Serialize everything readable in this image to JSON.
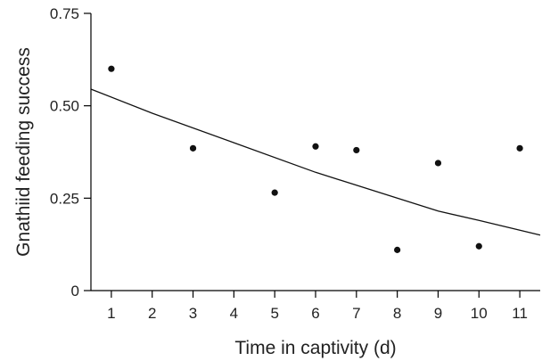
{
  "chart_data": {
    "type": "scatter",
    "xlabel": "Time in captivity (d)",
    "ylabel": "Gnathiid feeding success",
    "xlim": [
      0.5,
      11.5
    ],
    "ylim": [
      0,
      0.75
    ],
    "x_ticks": [
      1,
      2,
      3,
      4,
      5,
      6,
      7,
      8,
      9,
      10,
      11
    ],
    "x_tick_labels": [
      "1",
      "2",
      "3",
      "4",
      "5",
      "6",
      "7",
      "8",
      "9",
      "10",
      "11"
    ],
    "y_ticks": [
      0,
      0.25,
      0.5,
      0.75
    ],
    "y_tick_labels": [
      "0",
      "0.25",
      "0.50",
      "0.75"
    ],
    "grid": false,
    "series": [
      {
        "type": "scatter",
        "points": [
          {
            "x": 1,
            "y": 0.6
          },
          {
            "x": 3,
            "y": 0.385
          },
          {
            "x": 5,
            "y": 0.265
          },
          {
            "x": 6,
            "y": 0.39
          },
          {
            "x": 7,
            "y": 0.38
          },
          {
            "x": 8,
            "y": 0.11
          },
          {
            "x": 9,
            "y": 0.345
          },
          {
            "x": 10,
            "y": 0.12
          },
          {
            "x": 11,
            "y": 0.385
          }
        ]
      },
      {
        "type": "line",
        "points": [
          {
            "x": 0.5,
            "y": 0.545
          },
          {
            "x": 2,
            "y": 0.48
          },
          {
            "x": 4,
            "y": 0.4
          },
          {
            "x": 6,
            "y": 0.32
          },
          {
            "x": 8,
            "y": 0.25
          },
          {
            "x": 9,
            "y": 0.215
          },
          {
            "x": 10,
            "y": 0.19
          },
          {
            "x": 11.5,
            "y": 0.15
          }
        ]
      }
    ]
  }
}
